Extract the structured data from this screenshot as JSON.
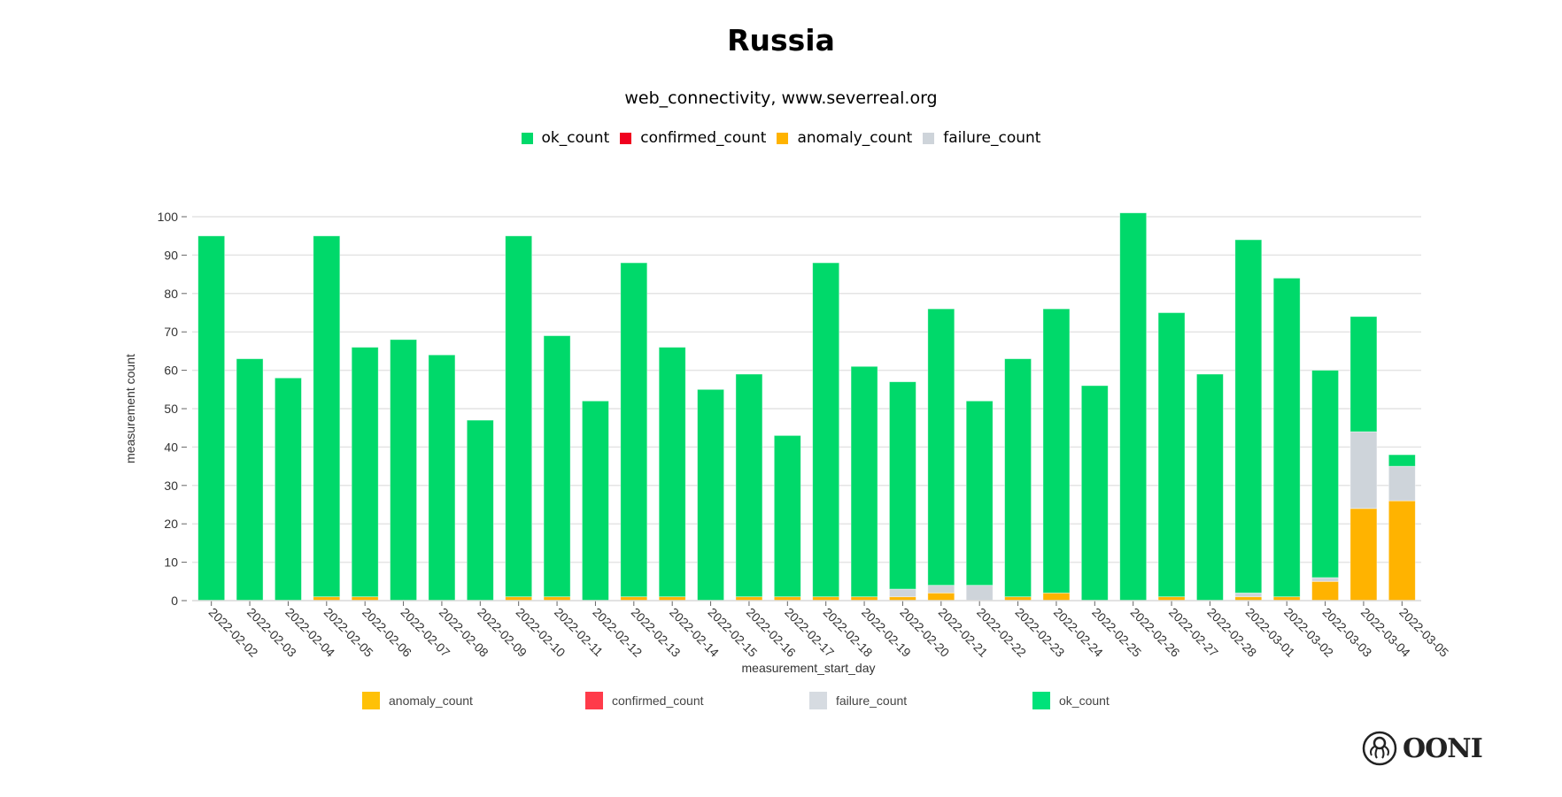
{
  "header": {
    "title": "Russia",
    "subtitle": "web_connectivity, www.severreal.org"
  },
  "colors": {
    "ok_count": "#00d96a",
    "confirmed_count": "#f0001e",
    "anomaly_count": "#ffb300",
    "failure_count": "#ced4da"
  },
  "top_legend": [
    {
      "key": "ok_count",
      "label": "ok_count"
    },
    {
      "key": "confirmed_count",
      "label": "confirmed_count"
    },
    {
      "key": "anomaly_count",
      "label": "anomaly_count"
    },
    {
      "key": "failure_count",
      "label": "failure_count"
    }
  ],
  "bottom_legend": [
    {
      "key": "anomaly_count",
      "label": "anomaly_count",
      "color": "#ffc107"
    },
    {
      "key": "confirmed_count",
      "label": "confirmed_count",
      "color": "#ff3b4a"
    },
    {
      "key": "failure_count",
      "label": "failure_count",
      "color": "#d6dbe1"
    },
    {
      "key": "ok_count",
      "label": "ok_count",
      "color": "#00e27a"
    }
  ],
  "chart_data": {
    "type": "bar",
    "stacked": true,
    "title": "Russia",
    "subtitle": "web_connectivity, www.severreal.org",
    "xlabel": "measurement_start_day",
    "ylabel": "measurement count",
    "ylim": [
      0,
      100
    ],
    "yticks": [
      0,
      10,
      20,
      30,
      40,
      50,
      60,
      70,
      80,
      90,
      100
    ],
    "grid": true,
    "legend_placement": "top and bottom",
    "categories": [
      "2022-02-02",
      "2022-02-03",
      "2022-02-04",
      "2022-02-05",
      "2022-02-06",
      "2022-02-07",
      "2022-02-08",
      "2022-02-09",
      "2022-02-10",
      "2022-02-11",
      "2022-02-12",
      "2022-02-13",
      "2022-02-14",
      "2022-02-15",
      "2022-02-16",
      "2022-02-17",
      "2022-02-18",
      "2022-02-19",
      "2022-02-20",
      "2022-02-21",
      "2022-02-22",
      "2022-02-23",
      "2022-02-24",
      "2022-02-25",
      "2022-02-26",
      "2022-02-27",
      "2022-02-28",
      "2022-03-01",
      "2022-03-02",
      "2022-03-03",
      "2022-03-04",
      "2022-03-05"
    ],
    "series": [
      {
        "name": "anomaly_count",
        "values": [
          0,
          0,
          0,
          1,
          1,
          0,
          0,
          0,
          1,
          1,
          0,
          1,
          1,
          0,
          1,
          1,
          1,
          1,
          1,
          2,
          0,
          1,
          2,
          0,
          0,
          1,
          0,
          1,
          1,
          5,
          24,
          26
        ]
      },
      {
        "name": "confirmed_count",
        "values": [
          0,
          0,
          0,
          0,
          0,
          0,
          0,
          0,
          0,
          0,
          0,
          0,
          0,
          0,
          0,
          0,
          0,
          0,
          0,
          0,
          0,
          0,
          0,
          0,
          0,
          0,
          0,
          0,
          0,
          0,
          0,
          0
        ]
      },
      {
        "name": "failure_count",
        "values": [
          0,
          0,
          0,
          0,
          0,
          0,
          0,
          0,
          0,
          0,
          0,
          0,
          0,
          0,
          0,
          0,
          0,
          0,
          2,
          2,
          4,
          0,
          0,
          0,
          0,
          0,
          0,
          1,
          0,
          1,
          20,
          9
        ]
      },
      {
        "name": "ok_count",
        "values": [
          95,
          63,
          58,
          94,
          65,
          68,
          64,
          47,
          94,
          68,
          52,
          87,
          65,
          55,
          58,
          42,
          87,
          60,
          54,
          72,
          48,
          62,
          74,
          56,
          101,
          74,
          59,
          92,
          83,
          54,
          30,
          3
        ]
      }
    ]
  },
  "logo": {
    "text": "OONI"
  }
}
